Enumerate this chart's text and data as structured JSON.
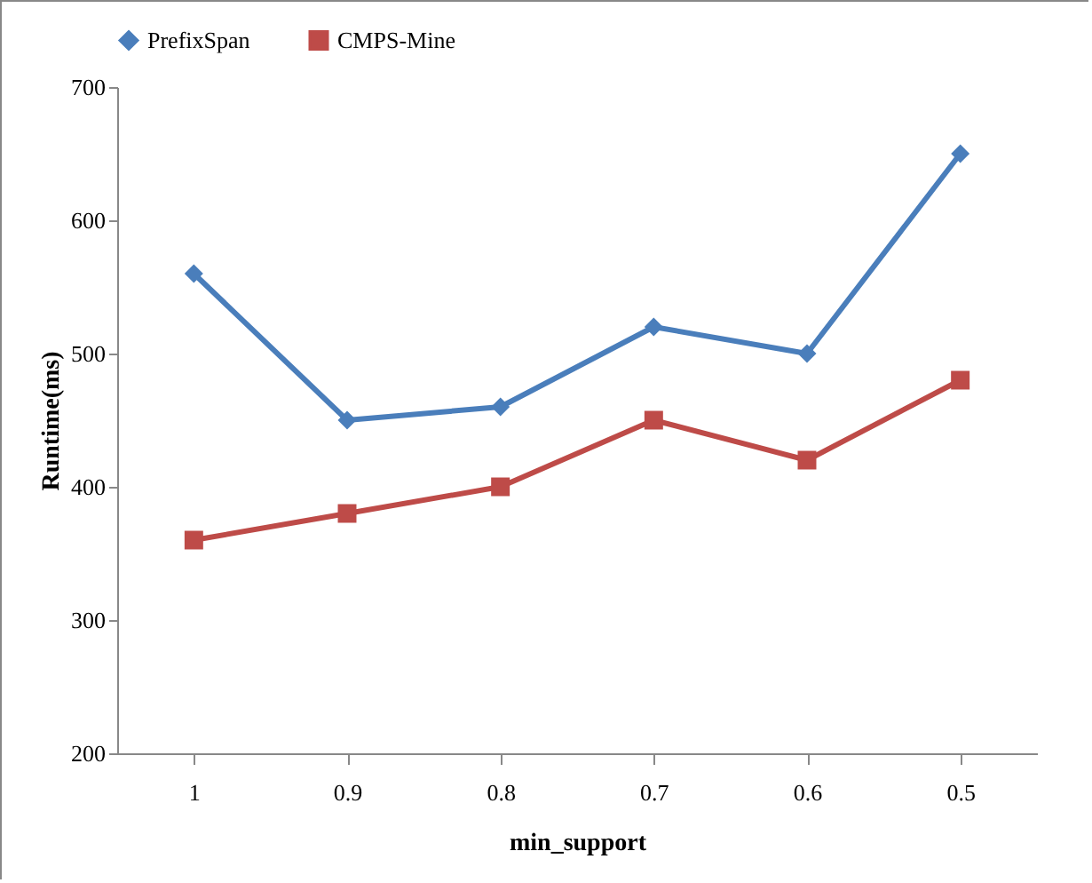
{
  "chart_data": {
    "type": "line",
    "xlabel": "min_support",
    "ylabel": "Runtime(ms)",
    "categories": [
      "1",
      "0.9",
      "0.8",
      "0.7",
      "0.6",
      "0.5"
    ],
    "series": [
      {
        "name": "PrefixSpan",
        "color": "#4a7ebb",
        "marker": "diamond",
        "values": [
          560,
          450,
          460,
          520,
          500,
          650
        ]
      },
      {
        "name": "CMPS-Mine",
        "color": "#be4b48",
        "marker": "square",
        "values": [
          360,
          380,
          400,
          450,
          420,
          480
        ]
      }
    ],
    "ylim": [
      200,
      700
    ],
    "yticks": [
      200,
      300,
      400,
      500,
      600,
      700
    ],
    "grid": false,
    "legend": "top"
  }
}
